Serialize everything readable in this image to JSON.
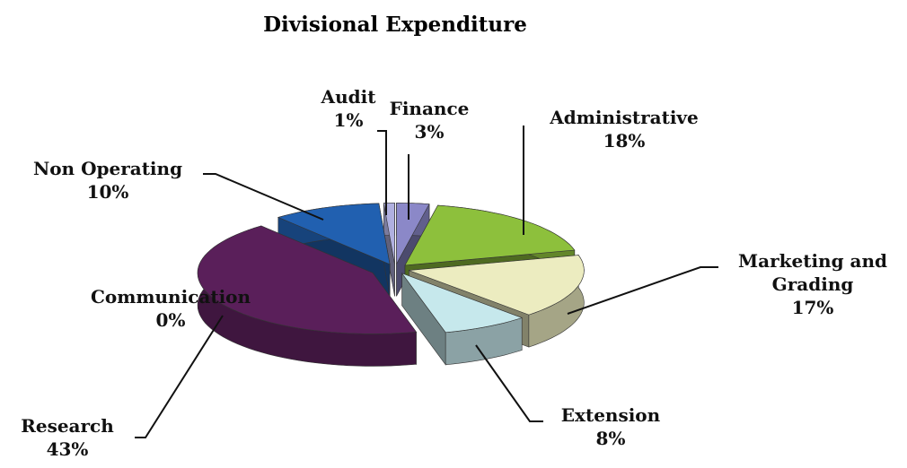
{
  "chart_data": {
    "type": "pie3d",
    "title": "Divisional Expenditure",
    "categories": [
      "Finance",
      "Administrative",
      "Marketing and Grading",
      "Extension",
      "Research",
      "Communication",
      "Non Operating",
      "Audit"
    ],
    "values": [
      3,
      18,
      17,
      8,
      43,
      0,
      10,
      1
    ],
    "value_labels": [
      "3%",
      "18%",
      "17%",
      "8%",
      "43%",
      "0%",
      "10%",
      "1%"
    ],
    "colors": [
      "#8b88c8",
      "#8dc03c",
      "#ececc0",
      "#c6e8ec",
      "#5a1f5a",
      "#1c4a28",
      "#2160b0",
      "#b0b0e0"
    ]
  }
}
